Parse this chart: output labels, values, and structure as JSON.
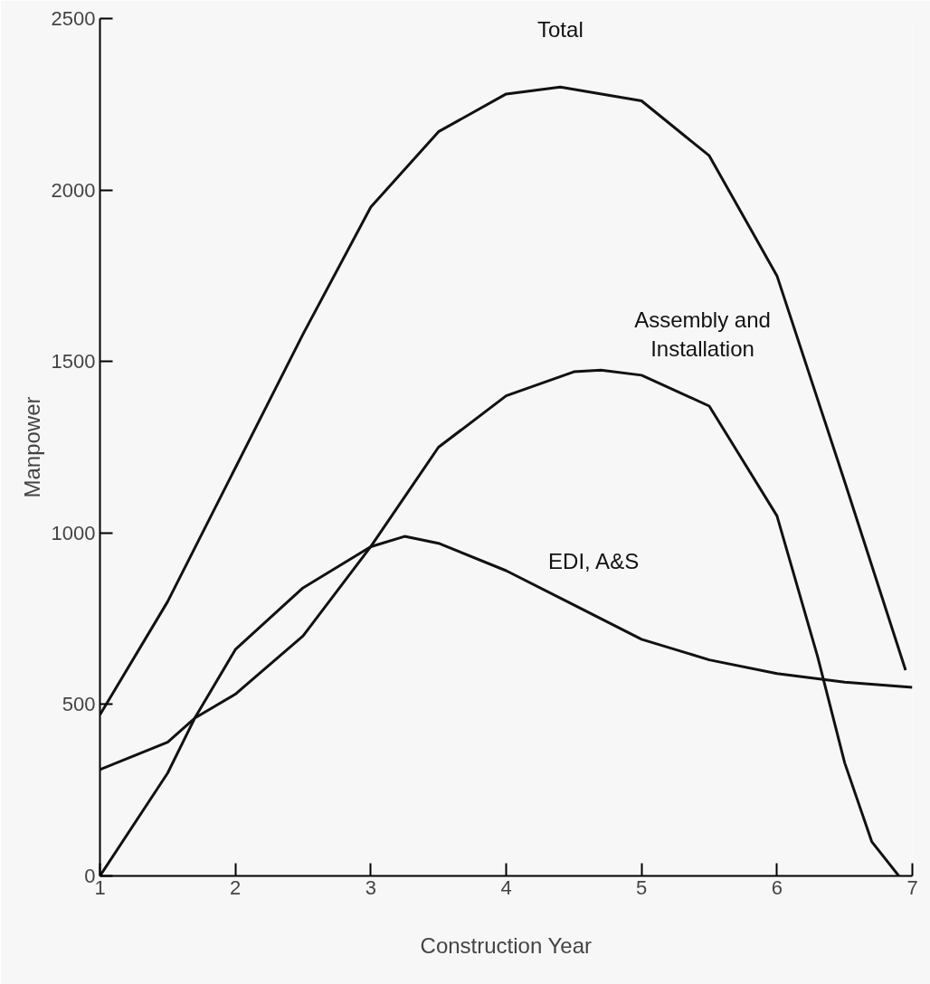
{
  "chart_data": {
    "type": "line",
    "xlabel": "Construction Year",
    "ylabel": "Manpower",
    "xlim": [
      1,
      7
    ],
    "ylim": [
      0,
      2500
    ],
    "xticks": [
      1,
      2,
      3,
      4,
      5,
      6,
      7
    ],
    "yticks": [
      0,
      500,
      1000,
      1500,
      2000,
      2500
    ],
    "grid": false,
    "marker": "none",
    "line_style": "solid",
    "series": [
      {
        "color": "#111111",
        "x": [
          1,
          1.5,
          2,
          2.5,
          3,
          3.5,
          4,
          4.4,
          5,
          5.5,
          6,
          6.5,
          6.95
        ],
        "values": [
          470,
          800,
          1190,
          1580,
          1950,
          2170,
          2280,
          2300,
          2260,
          2100,
          1750,
          1150,
          600
        ]
      },
      {
        "color": "#111111",
        "x": [
          1,
          1.5,
          1.7,
          2,
          2.5,
          3,
          3.5,
          4,
          4.5,
          4.7,
          5,
          5.5,
          6,
          6.3,
          6.5,
          6.7,
          6.9
        ],
        "values": [
          0,
          300,
          460,
          660,
          840,
          960,
          1250,
          1400,
          1470,
          1475,
          1460,
          1370,
          1050,
          640,
          330,
          100,
          0
        ]
      },
      {
        "color": "#111111",
        "x": [
          1,
          1.5,
          1.7,
          2,
          2.5,
          3,
          3.25,
          3.5,
          4,
          4.5,
          5,
          5.5,
          6,
          6.5,
          7
        ],
        "values": [
          310,
          390,
          460,
          530,
          700,
          960,
          990,
          970,
          890,
          790,
          690,
          630,
          590,
          565,
          550
        ]
      }
    ],
    "annotations": [
      {
        "text": "Total",
        "x": 4.4,
        "y": 2300
      },
      {
        "text": "Assembly and\nInstallation",
        "x": 5.45,
        "y": 1370
      },
      {
        "text": "EDI, A&S",
        "x": 4.65,
        "y": 750
      }
    ]
  }
}
